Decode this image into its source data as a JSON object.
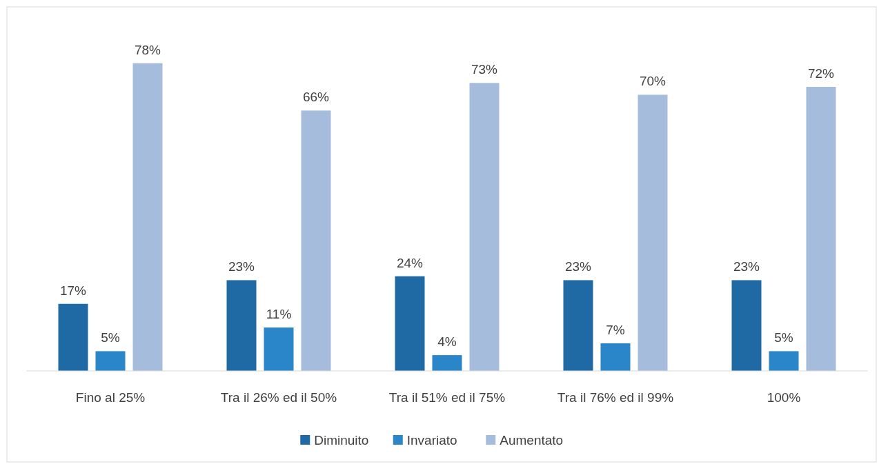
{
  "chart_data": {
    "type": "bar",
    "categories": [
      "Fino al 25%",
      "Tra il 26% ed il 50%",
      "Tra il 51% ed il 75%",
      "Tra il 76% ed il 99%",
      "100%"
    ],
    "series": [
      {
        "name": "Diminuito",
        "color": "#1f6aa5",
        "values": [
          17,
          23,
          24,
          23,
          23
        ],
        "value_labels": [
          "17%",
          "23%",
          "24%",
          "23%",
          "23%"
        ]
      },
      {
        "name": "Invariato",
        "color": "#2a86c8",
        "values": [
          5,
          11,
          4,
          7,
          5
        ],
        "value_labels": [
          "5%",
          "11%",
          "4%",
          "7%",
          "5%"
        ]
      },
      {
        "name": "Aumentato",
        "color": "#a5bcdd",
        "values": [
          78,
          66,
          73,
          70,
          72
        ],
        "value_labels": [
          "78%",
          "66%",
          "73%",
          "70%",
          "72%"
        ]
      }
    ],
    "legend": "bottom"
  }
}
